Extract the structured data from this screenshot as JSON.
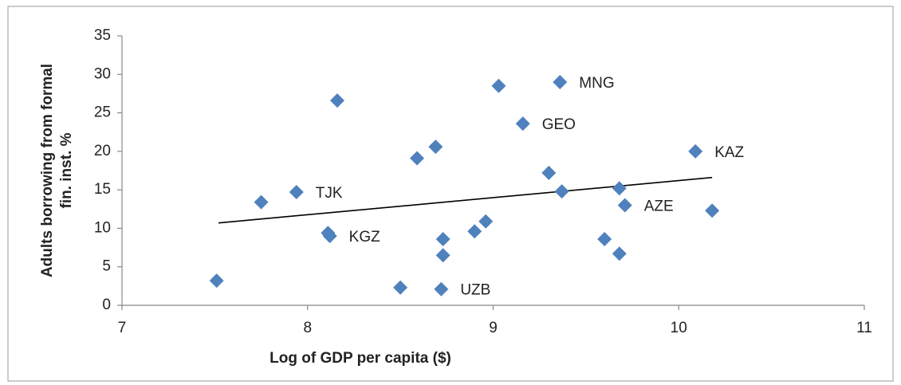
{
  "chart_data": {
    "type": "scatter",
    "xlabel": "Log of GDP per capita ($)",
    "ylabel": [
      "Adults borrowing from formal",
      "fin. inst. %"
    ],
    "xlim": [
      7,
      11
    ],
    "xticks": [
      7,
      8,
      9,
      10,
      11
    ],
    "ylim": [
      0,
      35
    ],
    "yticks": [
      0,
      5,
      10,
      15,
      20,
      25,
      30,
      35
    ],
    "grid": false,
    "series": [
      {
        "color": "#4f81bd",
        "x": [
          7.51,
          7.75,
          7.94,
          8.11,
          8.12,
          8.16,
          8.5,
          8.59,
          8.69,
          8.73,
          8.73,
          8.72,
          8.9,
          8.96,
          9.03,
          9.16,
          9.3,
          9.36,
          9.37,
          9.6,
          9.68,
          9.68,
          9.71,
          10.09,
          10.18
        ],
        "values": [
          3.2,
          13.4,
          14.7,
          9.4,
          9.0,
          26.6,
          2.3,
          19.1,
          20.6,
          8.6,
          6.5,
          2.1,
          9.6,
          10.9,
          28.5,
          23.6,
          17.2,
          29.0,
          14.8,
          8.6,
          15.2,
          6.7,
          13.0,
          20.0,
          12.3
        ],
        "point_labels": [
          null,
          null,
          "TJK",
          null,
          "KGZ",
          null,
          null,
          null,
          null,
          null,
          null,
          "UZB",
          null,
          null,
          null,
          "GEO",
          null,
          "MNG",
          null,
          null,
          null,
          null,
          "AZE",
          "KAZ",
          null
        ]
      }
    ],
    "trendline": {
      "color": "#000000",
      "x": [
        7.52,
        10.18
      ],
      "values": [
        10.7,
        16.6
      ]
    }
  }
}
